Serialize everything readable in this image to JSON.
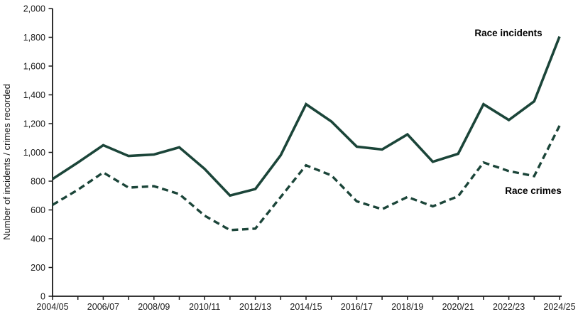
{
  "chart_data": {
    "type": "line",
    "title": "",
    "xlabel": "",
    "ylabel": "Number of incidents / crimes recorded",
    "ylim": [
      0,
      2000
    ],
    "ytick_step": 200,
    "ytick_labels": [
      "0",
      "200",
      "400",
      "600",
      "800",
      "1,000",
      "1,200",
      "1,400",
      "1,600",
      "1,800",
      "2,000"
    ],
    "categories": [
      "2004/05",
      "2005/06",
      "2006/07",
      "2007/08",
      "2008/09",
      "2009/10",
      "2010/11",
      "2011/12",
      "2012/13",
      "2013/14",
      "2014/15",
      "2015/16",
      "2016/17",
      "2017/18",
      "2018/19",
      "2019/20",
      "2020/21",
      "2021/22",
      "2022/23",
      "2023/24",
      "2024/25"
    ],
    "xtick_labels_shown": [
      "2004/05",
      "2006/07",
      "2008/09",
      "2010/11",
      "2012/13",
      "2014/15",
      "2016/17",
      "2018/19",
      "2020/21",
      "2022/23",
      "2024/25"
    ],
    "grid": false,
    "legend_position": "inline annotations near lines",
    "colors": {
      "line": "#1b4539",
      "axis": "#1a1a1a",
      "text": "#1a1a1a",
      "background": "#ffffff"
    },
    "series": [
      {
        "name": "Race incidents",
        "line_style": "solid",
        "values": [
          815,
          930,
          1050,
          975,
          985,
          1035,
          885,
          700,
          745,
          980,
          1335,
          1215,
          1040,
          1020,
          1125,
          935,
          990,
          1335,
          1225,
          1355,
          1805
        ]
      },
      {
        "name": "Race crimes",
        "line_style": "dashed",
        "values": [
          635,
          740,
          860,
          755,
          765,
          710,
          560,
          460,
          470,
          690,
          910,
          840,
          660,
          605,
          690,
          625,
          695,
          930,
          870,
          835,
          1185
        ]
      }
    ]
  }
}
